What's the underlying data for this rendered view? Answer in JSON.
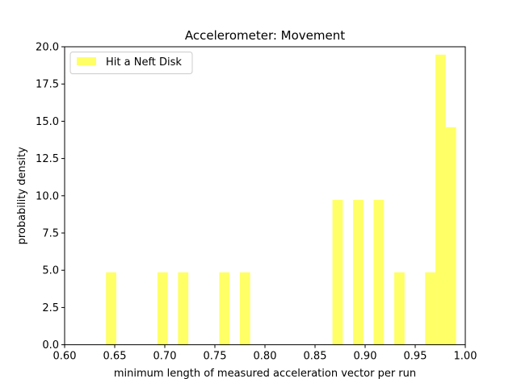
{
  "chart_data": {
    "type": "bar",
    "title": "Accelerometer: Movement",
    "xlabel": "minimum length of measured acceleration vector per run",
    "ylabel": "probability density",
    "xlim": [
      0.6,
      1.0
    ],
    "ylim": [
      0.0,
      20.0
    ],
    "x_ticks": [
      "0.60",
      "0.65",
      "0.70",
      "0.75",
      "0.80",
      "0.85",
      "0.90",
      "0.95",
      "1.00"
    ],
    "y_ticks": [
      "0.0",
      "2.5",
      "5.0",
      "7.5",
      "10.0",
      "12.5",
      "15.0",
      "17.5",
      "20.0"
    ],
    "legend_position": "top-left",
    "bin_width": 0.0103,
    "series": [
      {
        "name": "Hit a Neft Disk",
        "color": "#ffff66",
        "bins": [
          {
            "x": 0.6413,
            "value": 4.86
          },
          {
            "x": 0.6927,
            "value": 4.86
          },
          {
            "x": 0.7132,
            "value": 4.86
          },
          {
            "x": 0.7544,
            "value": 4.86
          },
          {
            "x": 0.7749,
            "value": 4.86
          },
          {
            "x": 0.8674,
            "value": 9.72
          },
          {
            "x": 0.888,
            "value": 9.72
          },
          {
            "x": 0.9085,
            "value": 9.72
          },
          {
            "x": 0.9291,
            "value": 4.86
          },
          {
            "x": 0.9599,
            "value": 4.86
          },
          {
            "x": 0.9702,
            "value": 19.47
          },
          {
            "x": 0.9805,
            "value": 14.6
          }
        ]
      }
    ]
  }
}
